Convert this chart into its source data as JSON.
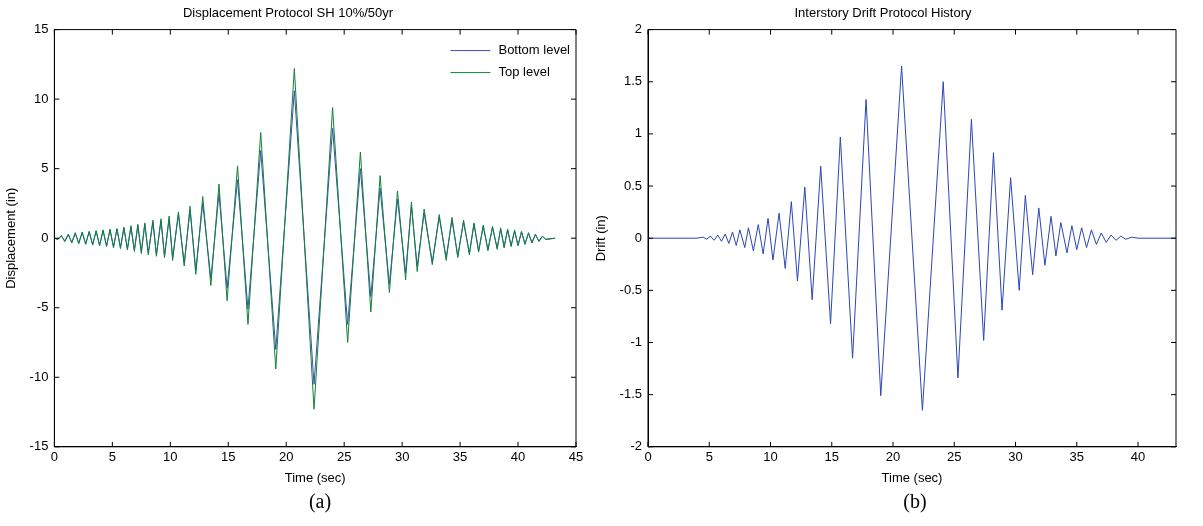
{
  "chart_data": [
    {
      "type": "line",
      "title": "Displacement Protocol SH 10%/50yr",
      "xlabel": "Time (sec)",
      "ylabel": "Displacement (in)",
      "annotations": [
        "(a)"
      ],
      "x": [
        0,
        0.3,
        0.6,
        0.9,
        1.2,
        1.5,
        1.8,
        2.1,
        2.4,
        2.7,
        3.0,
        3.3,
        3.6,
        3.9,
        4.2,
        4.5,
        4.8,
        5.1,
        5.4,
        5.7,
        6.0,
        6.3,
        6.6,
        6.9,
        7.2,
        7.5,
        7.8,
        8.1,
        8.5,
        8.8,
        9.2,
        9.5,
        9.9,
        10.2,
        10.7,
        11.2,
        11.7,
        12.2,
        12.8,
        13.5,
        14.2,
        14.9,
        15.8,
        16.7,
        17.8,
        19.1,
        20.7,
        22.4,
        24.0,
        25.3,
        26.4,
        27.3,
        28.1,
        28.9,
        29.6,
        30.3,
        30.8,
        31.3,
        31.9,
        32.6,
        33.2,
        33.8,
        34.3,
        34.8,
        35.3,
        35.8,
        36.2,
        36.6,
        37.0,
        37.4,
        37.8,
        38.2,
        38.5,
        38.8,
        39.1,
        39.4,
        39.7,
        40.0,
        40.3,
        40.6,
        40.9,
        41.2,
        41.5,
        41.8,
        42.1,
        42.4,
        43.2
      ],
      "series": [
        {
          "name": "Bottom level",
          "color": "#3a4fb8",
          "values": [
            0,
            -0.07,
            0.15,
            -0.2,
            0.25,
            -0.3,
            0.35,
            -0.35,
            0.4,
            -0.4,
            0.45,
            -0.45,
            0.5,
            -0.5,
            0.55,
            -0.55,
            0.6,
            -0.6,
            0.65,
            -0.65,
            0.7,
            -0.75,
            0.8,
            -0.85,
            0.9,
            -0.95,
            1.0,
            -1.05,
            1.15,
            -1.15,
            1.25,
            -1.25,
            1.4,
            -1.4,
            1.7,
            -1.8,
            2.0,
            -2.3,
            2.5,
            -2.9,
            3.2,
            -3.6,
            4.2,
            -5.1,
            6.3,
            -8.0,
            10.6,
            -10.5,
            7.9,
            -6.2,
            5.0,
            -4.2,
            3.6,
            -3.3,
            2.8,
            -2.5,
            2.3,
            -2.0,
            1.8,
            -1.7,
            1.5,
            -1.4,
            1.3,
            -1.25,
            1.15,
            -1.05,
            1.0,
            -0.9,
            0.85,
            -0.8,
            0.75,
            -0.7,
            0.65,
            -0.6,
            0.6,
            -0.55,
            0.5,
            -0.5,
            0.45,
            -0.4,
            0.35,
            -0.3,
            0.25,
            -0.2,
            0.12,
            -0.07,
            0
          ]
        },
        {
          "name": "Top level",
          "color": "#13803a",
          "values": [
            0,
            -0.1,
            0.2,
            -0.25,
            0.3,
            -0.35,
            0.4,
            -0.4,
            0.45,
            -0.45,
            0.5,
            -0.5,
            0.55,
            -0.55,
            0.6,
            -0.6,
            0.65,
            -0.7,
            0.7,
            -0.75,
            0.8,
            -0.85,
            0.9,
            -0.95,
            1.0,
            -1.1,
            1.1,
            -1.2,
            1.3,
            -1.3,
            1.4,
            -1.4,
            1.6,
            -1.6,
            1.9,
            -2.0,
            2.3,
            -2.6,
            3.0,
            -3.4,
            3.9,
            -4.5,
            5.2,
            -6.2,
            7.6,
            -9.4,
            12.2,
            -12.3,
            9.4,
            -7.5,
            6.2,
            -5.3,
            4.5,
            -3.9,
            3.4,
            -3.0,
            2.6,
            -2.4,
            2.1,
            -1.9,
            1.7,
            -1.6,
            1.5,
            -1.4,
            1.3,
            -1.2,
            1.1,
            -1.0,
            0.95,
            -0.9,
            0.85,
            -0.8,
            0.75,
            -0.7,
            0.65,
            -0.6,
            0.6,
            -0.55,
            0.5,
            -0.45,
            0.4,
            -0.35,
            0.3,
            -0.25,
            0.15,
            -0.1,
            0
          ]
        }
      ],
      "xlim": [
        0,
        45
      ],
      "xticks": [
        0,
        5,
        10,
        15,
        20,
        25,
        30,
        35,
        40,
        45
      ],
      "ylim": [
        -15,
        15
      ],
      "yticks": [
        -15,
        -10,
        -5,
        0,
        5,
        10,
        15
      ],
      "legend": "top right",
      "grid": false
    },
    {
      "type": "line",
      "title": "Interstory Drift Protocol History",
      "xlabel": "Time (sec)",
      "ylabel": "Drift (in)",
      "annotations": [
        "(b)"
      ],
      "x": [
        0,
        4.0,
        4.5,
        4.8,
        5.1,
        5.4,
        5.7,
        6.0,
        6.3,
        6.6,
        6.9,
        7.2,
        7.5,
        7.9,
        8.2,
        8.6,
        9.0,
        9.4,
        9.8,
        10.2,
        10.7,
        11.2,
        11.7,
        12.2,
        12.8,
        13.4,
        14.1,
        14.9,
        15.7,
        16.7,
        17.8,
        19.0,
        20.7,
        22.4,
        24.1,
        25.3,
        26.4,
        27.4,
        28.2,
        28.9,
        29.6,
        30.3,
        30.8,
        31.4,
        31.9,
        32.4,
        32.9,
        33.3,
        33.7,
        34.2,
        34.6,
        35.0,
        35.4,
        35.8,
        36.2,
        36.6,
        37.0,
        37.4,
        37.8,
        38.2,
        38.6,
        39.0,
        39.5,
        40.0,
        43.1
      ],
      "series": [
        {
          "color": "#2b46b8",
          "values": [
            0,
            0,
            0.01,
            -0.01,
            0.02,
            -0.02,
            0.03,
            -0.03,
            0.04,
            -0.05,
            0.06,
            -0.07,
            0.08,
            -0.09,
            0.1,
            -0.12,
            0.13,
            -0.15,
            0.19,
            -0.21,
            0.24,
            -0.29,
            0.35,
            -0.41,
            0.49,
            -0.59,
            0.69,
            -0.82,
            0.97,
            -1.15,
            1.33,
            -1.51,
            1.65,
            -1.65,
            1.5,
            -1.34,
            1.14,
            -0.98,
            0.82,
            -0.69,
            0.58,
            -0.5,
            0.41,
            -0.35,
            0.29,
            -0.26,
            0.21,
            -0.17,
            0.15,
            -0.14,
            0.12,
            -0.11,
            0.1,
            -0.09,
            0.08,
            -0.06,
            0.05,
            -0.04,
            0.03,
            -0.02,
            0.02,
            -0.01,
            0.01,
            0,
            0
          ]
        }
      ],
      "xlim": [
        0,
        43.1
      ],
      "xticks": [
        0,
        5,
        10,
        15,
        20,
        25,
        30,
        35,
        40
      ],
      "ylim": [
        -2,
        2
      ],
      "yticks": [
        -2,
        -1.5,
        -1,
        -0.5,
        0,
        0.5,
        1,
        1.5,
        2
      ],
      "grid": false
    }
  ]
}
